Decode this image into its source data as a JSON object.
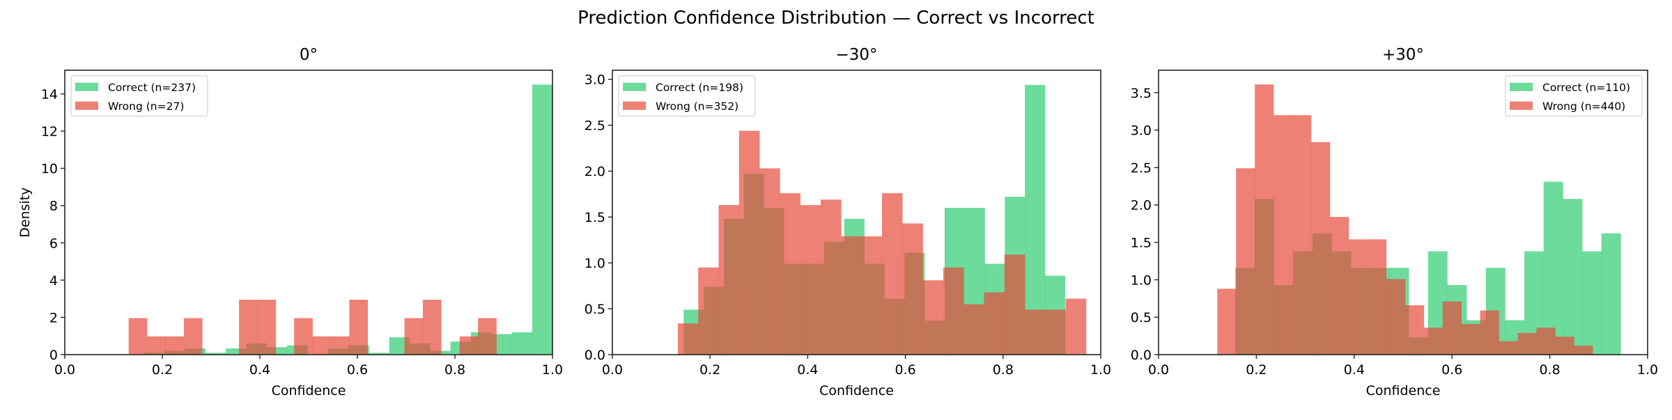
{
  "suptitle": "Prediction Confidence Distribution — Correct vs Incorrect",
  "colors": {
    "correct": "#2ecc71",
    "wrong": "#e74c3c",
    "bar_alpha": 0.7
  },
  "chart_data": [
    {
      "type": "histogram",
      "title": "0°",
      "xlabel": "Confidence",
      "ylabel": "Density",
      "xlim": [
        0,
        1.0
      ],
      "ylim": [
        0,
        15.27
      ],
      "xticks": [
        "0.0",
        "0.2",
        "0.4",
        "0.6",
        "0.8",
        "1.0"
      ],
      "yticks": [
        "0",
        "2",
        "4",
        "6",
        "8",
        "10",
        "12",
        "14"
      ],
      "ytick_values": [
        0,
        2,
        4,
        6,
        8,
        10,
        12,
        14
      ],
      "legend_position": "upper-left",
      "grid": false,
      "series": [
        {
          "name": "Correct (n=237)",
          "color_key": "correct",
          "bin_start": 0.1625,
          "bin_width": 0.0419,
          "values": [
            0.1,
            0.2,
            0.33,
            0.1,
            0.33,
            0.6,
            0.4,
            0.5,
            0,
            0.33,
            0.5,
            0.1,
            0.93,
            0.6,
            0.2,
            0.7,
            1.2,
            1.1,
            1.2,
            14.5
          ]
        },
        {
          "name": "Wrong (n=27)",
          "color_key": "wrong",
          "bin_start": 0.131,
          "bin_width": 0.0377,
          "values": [
            1.96,
            0.98,
            0.98,
            1.96,
            0,
            0,
            2.95,
            2.95,
            0,
            1.96,
            0.98,
            0.98,
            2.95,
            0,
            0,
            1.96,
            2.95,
            0,
            0.98,
            1.96
          ]
        }
      ]
    },
    {
      "type": "histogram",
      "title": "−30°",
      "xlabel": "Confidence",
      "ylabel": "",
      "xlim": [
        0,
        1.0
      ],
      "ylim": [
        0,
        3.1
      ],
      "xticks": [
        "0.0",
        "0.2",
        "0.4",
        "0.6",
        "0.8",
        "1.0"
      ],
      "yticks": [
        "0.0",
        "0.5",
        "1.0",
        "1.5",
        "2.0",
        "2.5",
        "3.0"
      ],
      "ytick_values": [
        0,
        0.5,
        1.0,
        1.5,
        2.0,
        2.5,
        3.0
      ],
      "legend_position": "upper-left",
      "grid": false,
      "series": [
        {
          "name": "Correct (n=198)",
          "color_key": "correct",
          "bin_start": 0.146,
          "bin_width": 0.0411,
          "values": [
            0.49,
            0.74,
            1.48,
            1.97,
            1.6,
            0.99,
            0.99,
            1.23,
            1.48,
            0.99,
            0.61,
            1.11,
            0.37,
            1.6,
            1.6,
            0.99,
            1.72,
            2.94,
            0.86
          ]
        },
        {
          "name": "Wrong (n=352)",
          "color_key": "wrong",
          "bin_start": 0.134,
          "bin_width": 0.0418,
          "values": [
            0.34,
            0.95,
            1.63,
            2.44,
            2.03,
            1.76,
            1.63,
            1.69,
            1.29,
            1.29,
            1.76,
            1.43,
            0.81,
            0.95,
            0.55,
            0.68,
            1.09,
            0.49,
            0.49,
            0.61
          ]
        }
      ]
    },
    {
      "type": "histogram",
      "title": "+30°",
      "xlabel": "Confidence",
      "ylabel": "",
      "xlim": [
        0,
        1.0
      ],
      "ylim": [
        0,
        3.8
      ],
      "xticks": [
        "0.0",
        "0.2",
        "0.4",
        "0.6",
        "0.8",
        "1.0"
      ],
      "yticks": [
        "0.0",
        "0.5",
        "1.0",
        "1.5",
        "2.0",
        "2.5",
        "3.0",
        "3.5"
      ],
      "ytick_values": [
        0,
        0.5,
        1.0,
        1.5,
        2.0,
        2.5,
        3.0,
        3.5
      ],
      "legend_position": "upper-right",
      "grid": false,
      "series": [
        {
          "name": "Correct (n=110)",
          "color_key": "correct",
          "bin_start": 0.157,
          "bin_width": 0.0394,
          "values": [
            1.16,
            2.08,
            0.93,
            1.38,
            1.62,
            1.38,
            1.16,
            1.16,
            1.16,
            0.23,
            1.38,
            0.93,
            0.46,
            1.16,
            0.46,
            1.38,
            2.31,
            2.08,
            1.38,
            1.62
          ]
        },
        {
          "name": "Wrong (n=440)",
          "color_key": "wrong",
          "bin_start": 0.12,
          "bin_width": 0.0384,
          "values": [
            0.88,
            2.49,
            3.61,
            3.2,
            3.2,
            2.84,
            1.84,
            1.54,
            1.54,
            1.01,
            0.66,
            0.36,
            0.71,
            0.41,
            0.59,
            0.18,
            0.29,
            0.36,
            0.24,
            0.12
          ]
        }
      ]
    }
  ]
}
